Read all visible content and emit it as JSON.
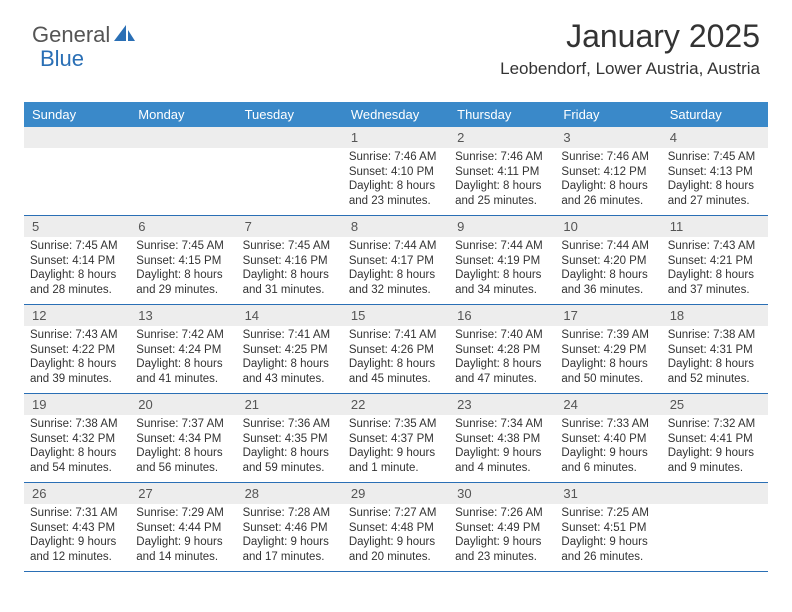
{
  "logo": {
    "word1": "General",
    "word2": "Blue"
  },
  "title": "January 2025",
  "location": "Leobendorf, Lower Austria, Austria",
  "colors": {
    "header_bg": "#3a89c9",
    "rule": "#2a6fb5",
    "daynum_bg": "#ededed",
    "text": "#333333",
    "logo_accent": "#2a6fb5"
  },
  "weekdays": [
    "Sunday",
    "Monday",
    "Tuesday",
    "Wednesday",
    "Thursday",
    "Friday",
    "Saturday"
  ],
  "weeks": [
    [
      null,
      null,
      null,
      {
        "n": "1",
        "sr": "7:46 AM",
        "ss": "4:10 PM",
        "dl": "8 hours and 23 minutes."
      },
      {
        "n": "2",
        "sr": "7:46 AM",
        "ss": "4:11 PM",
        "dl": "8 hours and 25 minutes."
      },
      {
        "n": "3",
        "sr": "7:46 AM",
        "ss": "4:12 PM",
        "dl": "8 hours and 26 minutes."
      },
      {
        "n": "4",
        "sr": "7:45 AM",
        "ss": "4:13 PM",
        "dl": "8 hours and 27 minutes."
      }
    ],
    [
      {
        "n": "5",
        "sr": "7:45 AM",
        "ss": "4:14 PM",
        "dl": "8 hours and 28 minutes."
      },
      {
        "n": "6",
        "sr": "7:45 AM",
        "ss": "4:15 PM",
        "dl": "8 hours and 29 minutes."
      },
      {
        "n": "7",
        "sr": "7:45 AM",
        "ss": "4:16 PM",
        "dl": "8 hours and 31 minutes."
      },
      {
        "n": "8",
        "sr": "7:44 AM",
        "ss": "4:17 PM",
        "dl": "8 hours and 32 minutes."
      },
      {
        "n": "9",
        "sr": "7:44 AM",
        "ss": "4:19 PM",
        "dl": "8 hours and 34 minutes."
      },
      {
        "n": "10",
        "sr": "7:44 AM",
        "ss": "4:20 PM",
        "dl": "8 hours and 36 minutes."
      },
      {
        "n": "11",
        "sr": "7:43 AM",
        "ss": "4:21 PM",
        "dl": "8 hours and 37 minutes."
      }
    ],
    [
      {
        "n": "12",
        "sr": "7:43 AM",
        "ss": "4:22 PM",
        "dl": "8 hours and 39 minutes."
      },
      {
        "n": "13",
        "sr": "7:42 AM",
        "ss": "4:24 PM",
        "dl": "8 hours and 41 minutes."
      },
      {
        "n": "14",
        "sr": "7:41 AM",
        "ss": "4:25 PM",
        "dl": "8 hours and 43 minutes."
      },
      {
        "n": "15",
        "sr": "7:41 AM",
        "ss": "4:26 PM",
        "dl": "8 hours and 45 minutes."
      },
      {
        "n": "16",
        "sr": "7:40 AM",
        "ss": "4:28 PM",
        "dl": "8 hours and 47 minutes."
      },
      {
        "n": "17",
        "sr": "7:39 AM",
        "ss": "4:29 PM",
        "dl": "8 hours and 50 minutes."
      },
      {
        "n": "18",
        "sr": "7:38 AM",
        "ss": "4:31 PM",
        "dl": "8 hours and 52 minutes."
      }
    ],
    [
      {
        "n": "19",
        "sr": "7:38 AM",
        "ss": "4:32 PM",
        "dl": "8 hours and 54 minutes."
      },
      {
        "n": "20",
        "sr": "7:37 AM",
        "ss": "4:34 PM",
        "dl": "8 hours and 56 minutes."
      },
      {
        "n": "21",
        "sr": "7:36 AM",
        "ss": "4:35 PM",
        "dl": "8 hours and 59 minutes."
      },
      {
        "n": "22",
        "sr": "7:35 AM",
        "ss": "4:37 PM",
        "dl": "9 hours and 1 minute."
      },
      {
        "n": "23",
        "sr": "7:34 AM",
        "ss": "4:38 PM",
        "dl": "9 hours and 4 minutes."
      },
      {
        "n": "24",
        "sr": "7:33 AM",
        "ss": "4:40 PM",
        "dl": "9 hours and 6 minutes."
      },
      {
        "n": "25",
        "sr": "7:32 AM",
        "ss": "4:41 PM",
        "dl": "9 hours and 9 minutes."
      }
    ],
    [
      {
        "n": "26",
        "sr": "7:31 AM",
        "ss": "4:43 PM",
        "dl": "9 hours and 12 minutes."
      },
      {
        "n": "27",
        "sr": "7:29 AM",
        "ss": "4:44 PM",
        "dl": "9 hours and 14 minutes."
      },
      {
        "n": "28",
        "sr": "7:28 AM",
        "ss": "4:46 PM",
        "dl": "9 hours and 17 minutes."
      },
      {
        "n": "29",
        "sr": "7:27 AM",
        "ss": "4:48 PM",
        "dl": "9 hours and 20 minutes."
      },
      {
        "n": "30",
        "sr": "7:26 AM",
        "ss": "4:49 PM",
        "dl": "9 hours and 23 minutes."
      },
      {
        "n": "31",
        "sr": "7:25 AM",
        "ss": "4:51 PM",
        "dl": "9 hours and 26 minutes."
      },
      null
    ]
  ],
  "labels": {
    "sunrise": "Sunrise:",
    "sunset": "Sunset:",
    "daylight": "Daylight:"
  }
}
